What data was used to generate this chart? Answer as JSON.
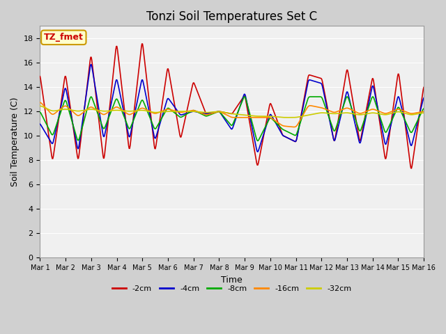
{
  "title": "Tonzi Soil Temperatures Set C",
  "xlabel": "Time",
  "ylabel": "Soil Temperature (C)",
  "ylim": [
    0,
    19
  ],
  "yticks": [
    0,
    2,
    4,
    6,
    8,
    10,
    12,
    14,
    16,
    18
  ],
  "xtick_labels": [
    "Mar 1",
    "Mar 2",
    "Mar 3",
    "Mar 4",
    "Mar 5",
    "Mar 6",
    "Mar 7",
    "Mar 8",
    "Mar 9",
    "Mar 10",
    "Mar 11",
    "Mar 12",
    "Mar 13",
    "Mar 14",
    "Mar 15",
    "Mar 16"
  ],
  "annotation_text": "TZ_fmet",
  "annotation_bg": "#ffffcc",
  "annotation_border": "#cc9900",
  "annotation_textcolor": "#cc0000",
  "series_colors": [
    "#cc0000",
    "#0000cc",
    "#00aa00",
    "#ff8800",
    "#cccc00"
  ],
  "series_labels": [
    "-2cm",
    "-4cm",
    "-8cm",
    "-16cm",
    "-32cm"
  ],
  "line_width": 1.2,
  "title_fontsize": 12,
  "axis_label_fontsize": 9,
  "tick_fontsize": 8,
  "days": 15,
  "red_peaks": [
    15.0,
    8.0,
    15.0,
    8.0,
    16.6,
    8.0,
    17.5,
    8.8,
    17.7,
    8.8,
    15.6,
    9.8,
    14.4,
    11.8,
    12.0,
    11.8,
    13.3,
    7.5,
    12.7,
    10.0,
    9.5,
    15.0,
    14.7,
    9.5,
    15.5,
    9.5,
    14.8,
    8.0,
    15.2,
    7.2,
    14.1,
    8.2
  ],
  "blue_peaks": [
    11.0,
    9.3,
    14.0,
    8.8,
    16.0,
    9.8,
    14.7,
    9.8,
    14.7,
    9.7,
    13.1,
    11.7,
    12.0,
    11.8,
    12.0,
    10.5,
    13.5,
    8.6,
    11.8,
    10.0,
    9.5,
    14.6,
    14.3,
    9.5,
    13.7,
    9.3,
    14.2,
    9.2,
    13.3,
    9.1,
    13.2,
    9.2
  ],
  "green_peaks": [
    12.0,
    10.0,
    13.0,
    9.5,
    13.3,
    10.5,
    13.1,
    10.5,
    13.0,
    10.5,
    12.3,
    11.5,
    12.1,
    11.6,
    12.0,
    10.8,
    13.3,
    9.5,
    11.5,
    10.5,
    10.0,
    13.2,
    13.2,
    10.3,
    13.3,
    10.3,
    13.3,
    10.2,
    12.4,
    10.2,
    12.3,
    10.2
  ],
  "orange_peaks": [
    12.8,
    11.7,
    12.5,
    11.6,
    12.4,
    11.7,
    12.4,
    11.7,
    12.3,
    11.8,
    12.2,
    11.9,
    12.1,
    11.7,
    12.0,
    11.5,
    11.5,
    11.5,
    11.5,
    10.8,
    10.7,
    12.5,
    12.3,
    11.9,
    12.3,
    11.8,
    12.2,
    11.8,
    12.2,
    11.8,
    12.0,
    11.5
  ],
  "yellow_peaks": [
    12.5,
    12.0,
    12.2,
    12.0,
    12.2,
    12.0,
    12.1,
    12.0,
    12.1,
    11.9,
    12.0,
    12.0,
    12.0,
    11.9,
    12.0,
    11.8,
    11.7,
    11.6,
    11.6,
    11.5,
    11.5,
    11.7,
    11.9,
    11.8,
    11.9,
    11.7,
    11.9,
    11.7,
    12.0,
    11.7,
    11.9,
    11.7
  ]
}
